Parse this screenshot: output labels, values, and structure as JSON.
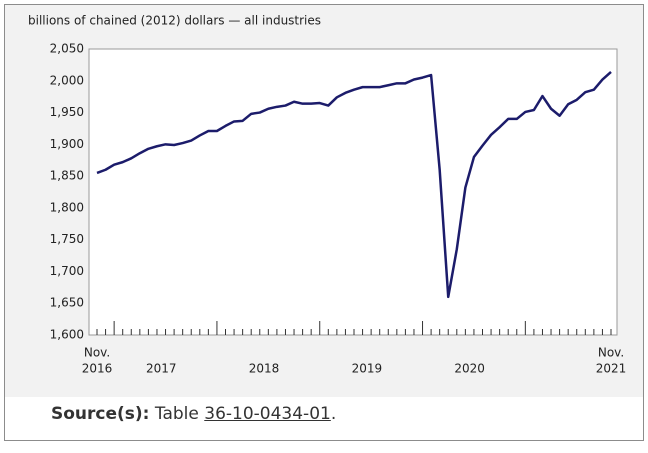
{
  "chart_data": {
    "type": "line",
    "y_label": "billions of chained (2012) dollars — all industries",
    "categories": [
      "Nov.",
      null,
      null,
      null,
      null,
      null,
      null,
      null,
      null,
      null,
      null,
      null,
      null,
      null,
      null,
      null,
      null,
      null,
      null,
      null,
      null,
      null,
      null,
      null,
      null,
      null,
      null,
      null,
      null,
      null,
      null,
      null,
      null,
      null,
      null,
      null,
      null,
      null,
      null,
      null,
      null,
      null,
      null,
      null,
      null,
      null,
      null,
      null,
      null,
      null,
      null,
      null,
      null,
      null,
      null,
      null,
      null,
      null,
      null,
      null,
      "Nov."
    ],
    "year_labels": [
      "2016",
      "2017",
      "2018",
      "2019",
      "2020",
      "2021"
    ],
    "series": [
      {
        "color": "#1c1c6b",
        "values": [
          1855,
          1860,
          1868,
          1872,
          1878,
          1886,
          1893,
          1897,
          1900,
          1899,
          1902,
          1906,
          1914,
          1921,
          1921,
          1929,
          1936,
          1937,
          1948,
          1950,
          1956,
          1959,
          1961,
          1967,
          1964,
          1964,
          1965,
          1961,
          1974,
          1981,
          1986,
          1990,
          1990,
          1990,
          1993,
          1996,
          1996,
          2002,
          2005,
          2009,
          1860,
          1660,
          1735,
          1832,
          1880,
          1898,
          1915,
          1927,
          1940,
          1940,
          1951,
          1954,
          1976,
          1956,
          1945,
          1963,
          1970,
          1982,
          1986,
          2002,
          2014
        ]
      }
    ],
    "ylim": [
      1600,
      2050
    ],
    "yticks": [
      {
        "value": 1600,
        "label": "1,600"
      },
      {
        "value": 1650,
        "label": "1,650"
      },
      {
        "value": 1700,
        "label": "1,700"
      },
      {
        "value": 1750,
        "label": "1,750"
      },
      {
        "value": 1800,
        "label": "1,800"
      },
      {
        "value": 1850,
        "label": "1,850"
      },
      {
        "value": 1900,
        "label": "1,900"
      },
      {
        "value": 1950,
        "label": "1,950"
      },
      {
        "value": 2000,
        "label": "2,000"
      },
      {
        "value": 2050,
        "label": "2,050"
      }
    ],
    "grid": false
  },
  "source": {
    "label": "Source(s):",
    "text": "Table",
    "link": "36-10-0434-01",
    "suffix": "."
  }
}
